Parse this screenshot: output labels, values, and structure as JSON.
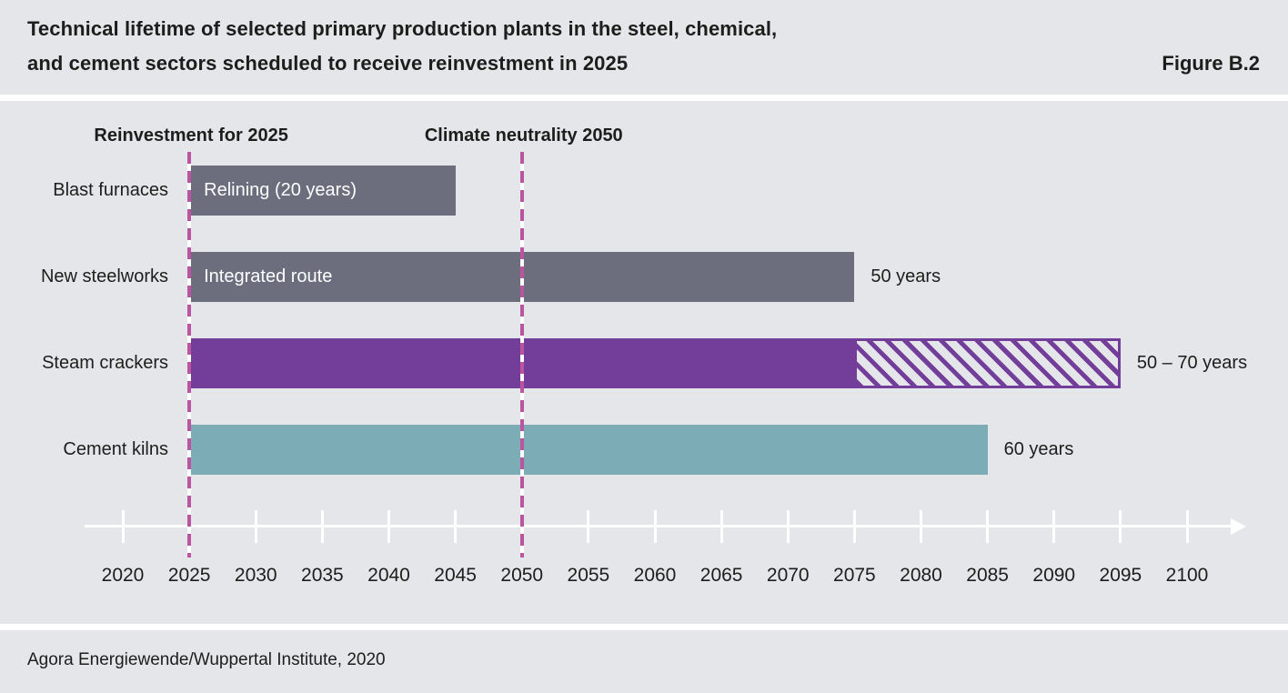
{
  "header": {
    "title_line1": "Technical lifetime of selected primary production plants in the steel, chemical,",
    "title_line2": "and cement sectors scheduled to receive reinvestment in 2025",
    "figure_label": "Figure B.2"
  },
  "footer": {
    "source": "Agora Energiewende/Wuppertal Institute, 2020"
  },
  "chart_data": {
    "type": "bar",
    "orientation": "horizontal",
    "title": "Technical lifetime of selected primary production plants in the steel, chemical, and cement sectors scheduled to receive reinvestment in 2025",
    "x_axis": {
      "min": 2020,
      "max": 2100,
      "step": 5,
      "tick_labels": [
        "2020",
        "2025",
        "2030",
        "2035",
        "2040",
        "2045",
        "2050",
        "2055",
        "2060",
        "2065",
        "2070",
        "2075",
        "2080",
        "2085",
        "2090",
        "2095",
        "2100"
      ]
    },
    "annotations": [
      {
        "label": "Reinvestment for 2025",
        "year": 2025
      },
      {
        "label": "Climate neutrality 2050",
        "year": 2050
      }
    ],
    "rows": [
      {
        "label": "Blast furnaces",
        "start": 2025,
        "end": 2045,
        "hatch_end": null,
        "bar_label": "Relining (20 years)",
        "value_label": "",
        "color": "#6c6e7d"
      },
      {
        "label": "New steelworks",
        "start": 2025,
        "end": 2075,
        "hatch_end": null,
        "bar_label": "Integrated route",
        "value_label": "50 years",
        "color": "#6c6e7d"
      },
      {
        "label": "Steam crackers",
        "start": 2025,
        "end": 2075,
        "hatch_end": 2095,
        "bar_label": "",
        "value_label": "50 – 70 years",
        "color": "#723e99"
      },
      {
        "label": "Cement kilns",
        "start": 2025,
        "end": 2085,
        "hatch_end": null,
        "bar_label": "",
        "value_label": "60 years",
        "color": "#7cadb7"
      }
    ],
    "colors": {
      "background": "#e5e6ea",
      "separator": "#ffffff",
      "bar_gray": "#6c6e7d",
      "bar_purple": "#723e99",
      "bar_teal": "#7cadb7",
      "dash_line_pink": "#bc55a0",
      "axis_white": "#ffffff",
      "text_dark": "#1d1d1b",
      "bar_text_white": "#ffffff"
    },
    "legend": null,
    "grid": false
  }
}
